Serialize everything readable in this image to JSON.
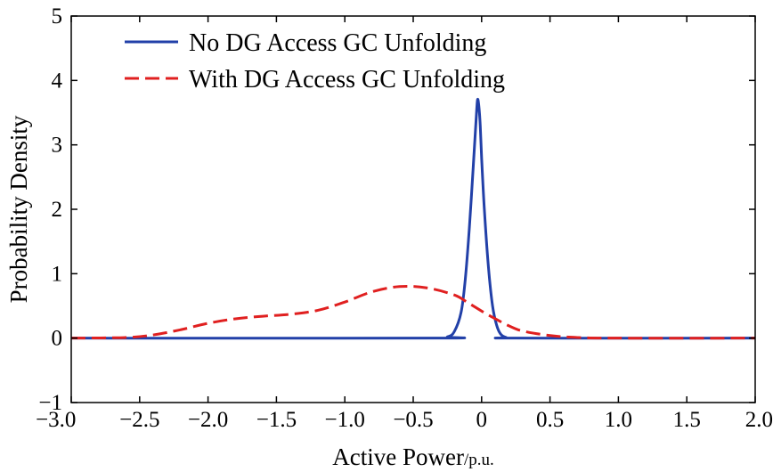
{
  "chart_data": {
    "type": "line",
    "xlabel": "Active Power",
    "xunit": "/p.u.",
    "ylabel": "Probability Density",
    "xlim": [
      -3.0,
      2.0
    ],
    "ylim": [
      -1,
      5
    ],
    "xticks": [
      -3.0,
      -2.5,
      -2.0,
      -1.5,
      -1.0,
      -0.5,
      0,
      0.5,
      1.0,
      1.5,
      2.0
    ],
    "xtick_labels": [
      "−3.0",
      "−2.5",
      "−2.0",
      "−1.5",
      "−1.0",
      "−0.5",
      "0",
      "0.5",
      "1.0",
      "1.5",
      "2.0"
    ],
    "yticks": [
      -1,
      0,
      1,
      2,
      3,
      4,
      5
    ],
    "ytick_labels": [
      "−1",
      "0",
      "1",
      "2",
      "3",
      "4",
      "5"
    ],
    "grid": false,
    "legend_position": "top-left",
    "series": [
      {
        "name": "No DG Access GC Unfolding",
        "color": "#2240a8",
        "dash": "solid",
        "x": [
          -3.0,
          -0.35,
          -0.25,
          -0.2,
          -0.15,
          -0.12,
          -0.09,
          -0.06,
          -0.04,
          -0.03,
          -0.02,
          -0.01,
          0.0,
          0.02,
          0.05,
          0.08,
          0.11,
          0.14,
          0.18,
          0.25,
          2.0
        ],
        "y": [
          0.0,
          0.0,
          0.02,
          0.1,
          0.4,
          0.9,
          1.7,
          2.7,
          3.4,
          3.7,
          3.6,
          3.3,
          2.8,
          2.0,
          1.1,
          0.5,
          0.2,
          0.06,
          0.01,
          0.0,
          0.0
        ]
      },
      {
        "name": "With DG Access GC Unfolding",
        "color": "#e02020",
        "dash": "dashed",
        "x": [
          -3.0,
          -2.6,
          -2.4,
          -2.2,
          -2.0,
          -1.8,
          -1.6,
          -1.4,
          -1.2,
          -1.0,
          -0.8,
          -0.6,
          -0.4,
          -0.2,
          -0.1,
          0.0,
          0.1,
          0.2,
          0.3,
          0.5,
          0.7,
          1.0,
          2.0
        ],
        "y": [
          0.0,
          0.01,
          0.05,
          0.13,
          0.23,
          0.3,
          0.34,
          0.37,
          0.43,
          0.56,
          0.72,
          0.8,
          0.78,
          0.67,
          0.55,
          0.42,
          0.3,
          0.19,
          0.11,
          0.04,
          0.01,
          0.0,
          0.0
        ]
      }
    ]
  }
}
